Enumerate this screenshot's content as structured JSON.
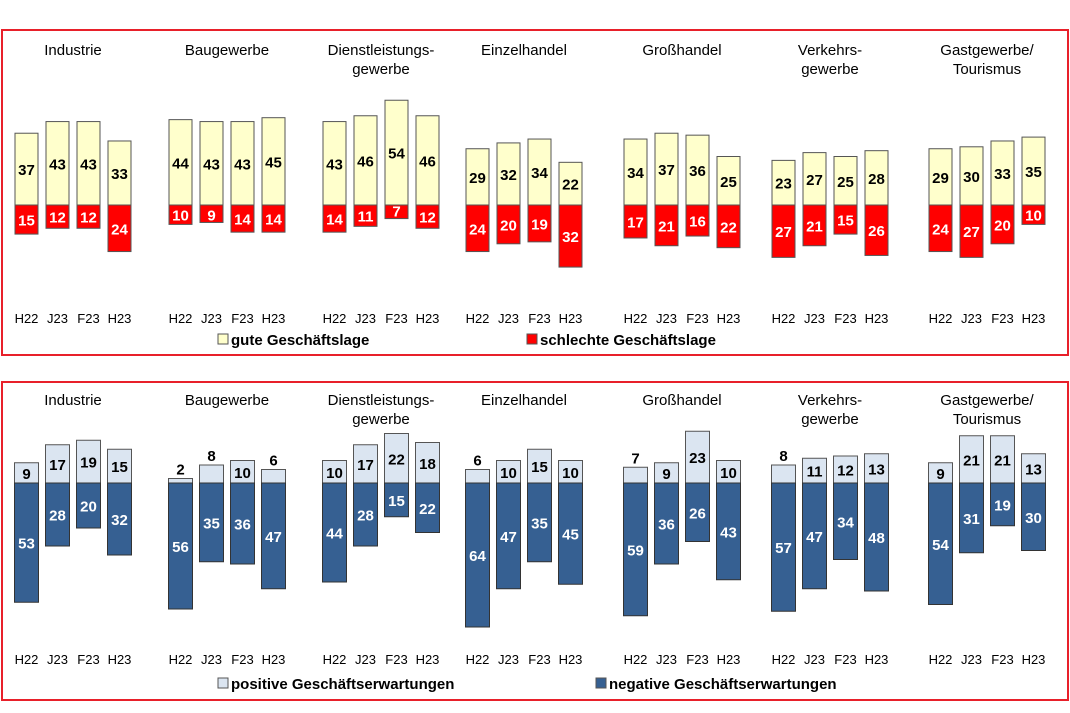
{
  "chart_data": [
    {
      "type": "bar",
      "subtype": "diverging-stacked",
      "title": "",
      "categories": [
        "H22",
        "J23",
        "F23",
        "H23"
      ],
      "groups": [
        {
          "name": "Industrie",
          "title_lines": [
            "Industrie"
          ],
          "positive": [
            37,
            43,
            43,
            33
          ],
          "negative": [
            15,
            12,
            12,
            24
          ]
        },
        {
          "name": "Baugewerbe",
          "title_lines": [
            "Baugewerbe"
          ],
          "positive": [
            44,
            43,
            43,
            45
          ],
          "negative": [
            10,
            9,
            14,
            14
          ]
        },
        {
          "name": "Dienstleistungsgewerbe",
          "title_lines": [
            "Dienstleistungs-",
            "gewerbe"
          ],
          "positive": [
            43,
            46,
            54,
            46
          ],
          "negative": [
            14,
            11,
            7,
            12
          ]
        },
        {
          "name": "Einzelhandel",
          "title_lines": [
            "Einzelhandel"
          ],
          "positive": [
            29,
            32,
            34,
            22
          ],
          "negative": [
            24,
            20,
            19,
            32
          ]
        },
        {
          "name": "Großhandel",
          "title_lines": [
            "Großhandel"
          ],
          "positive": [
            34,
            37,
            36,
            25
          ],
          "negative": [
            17,
            21,
            16,
            22
          ]
        },
        {
          "name": "Verkehrsgewerbe",
          "title_lines": [
            "Verkehrs-",
            "gewerbe"
          ],
          "positive": [
            23,
            27,
            25,
            28
          ],
          "negative": [
            27,
            21,
            15,
            26
          ]
        },
        {
          "name": "Gastgewerbe/Tourismus",
          "title_lines": [
            "Gastgewerbe/",
            "Tourismus"
          ],
          "positive": [
            29,
            30,
            33,
            35
          ],
          "negative": [
            24,
            27,
            20,
            10
          ]
        }
      ],
      "legend": [
        {
          "label": "gute Geschäftslage",
          "color": "#ffffcc"
        },
        {
          "label": "schlechte Geschäftslage",
          "color": "#ff0000"
        }
      ],
      "legend_position": "bottom",
      "grid": false,
      "unit": "percent"
    },
    {
      "type": "bar",
      "subtype": "diverging-stacked",
      "title": "",
      "categories": [
        "H22",
        "J23",
        "F23",
        "H23"
      ],
      "groups": [
        {
          "name": "Industrie",
          "title_lines": [
            "Industrie"
          ],
          "positive": [
            9,
            17,
            19,
            15
          ],
          "negative": [
            53,
            28,
            20,
            32
          ]
        },
        {
          "name": "Baugewerbe",
          "title_lines": [
            "Baugewerbe"
          ],
          "positive": [
            2,
            8,
            10,
            6
          ],
          "negative": [
            56,
            35,
            36,
            47
          ]
        },
        {
          "name": "Dienstleistungsgewerbe",
          "title_lines": [
            "Dienstleistungs-",
            "gewerbe"
          ],
          "positive": [
            10,
            17,
            22,
            18
          ],
          "negative": [
            44,
            28,
            15,
            22
          ]
        },
        {
          "name": "Einzelhandel",
          "title_lines": [
            "Einzelhandel"
          ],
          "positive": [
            6,
            10,
            15,
            10
          ],
          "negative": [
            64,
            47,
            35,
            45
          ]
        },
        {
          "name": "Großhandel",
          "title_lines": [
            "Großhandel"
          ],
          "positive": [
            7,
            9,
            23,
            10
          ],
          "negative": [
            59,
            36,
            26,
            43
          ]
        },
        {
          "name": "Verkehrsgewerbe",
          "title_lines": [
            "Verkehrs-",
            "gewerbe"
          ],
          "positive": [
            8,
            11,
            12,
            13
          ],
          "negative": [
            57,
            47,
            34,
            48
          ]
        },
        {
          "name": "Gastgewerbe/Tourismus",
          "title_lines": [
            "Gastgewerbe/",
            "Tourismus"
          ],
          "positive": [
            9,
            21,
            21,
            13
          ],
          "negative": [
            54,
            31,
            19,
            30
          ]
        }
      ],
      "legend": [
        {
          "label": "positive Geschäftserwartungen",
          "color": "#dbe5f1"
        },
        {
          "label": "negative Geschäftserwartungen",
          "color": "#366092"
        }
      ],
      "legend_position": "bottom",
      "grid": false,
      "unit": "percent"
    }
  ]
}
